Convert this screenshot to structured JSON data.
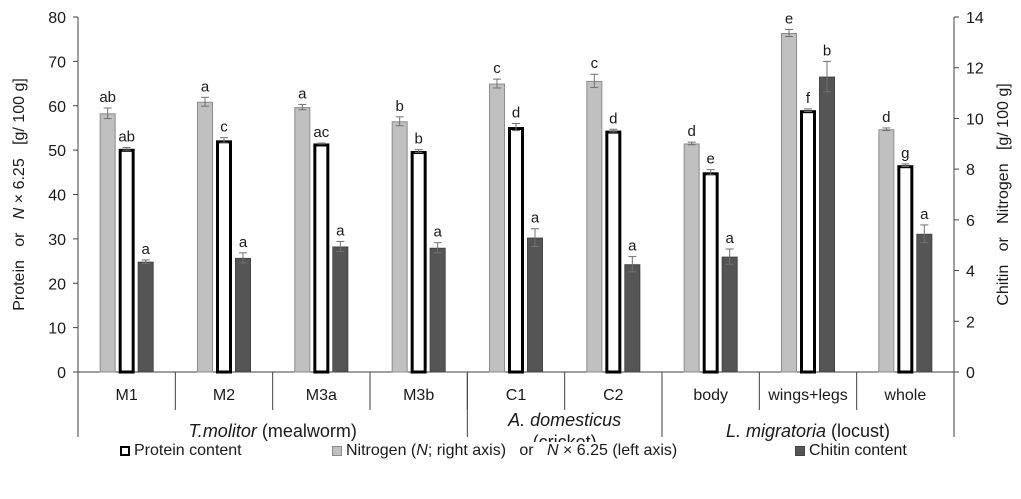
{
  "chart_data": {
    "type": "bar",
    "left_axis": {
      "label_parts": [
        {
          "text": "Protein   or   ",
          "italic": false
        },
        {
          "text": "N",
          "italic": true
        },
        {
          "text": " × 6.25   [g/ 100 g]",
          "italic": false
        }
      ],
      "ylim": [
        0,
        80
      ],
      "ticks": [
        0,
        10,
        20,
        30,
        40,
        50,
        60,
        70,
        80
      ]
    },
    "right_axis": {
      "label": "Chitin   or   Nitrogen   [g/ 100 g]",
      "ylim": [
        0,
        14
      ],
      "ticks": [
        0,
        2,
        4,
        6,
        8,
        10,
        12,
        14
      ]
    },
    "categories": [
      "M1",
      "M2",
      "M3a",
      "M3b",
      "C1",
      "C2",
      "body",
      "wings+legs",
      "whole"
    ],
    "groups": [
      {
        "label_parts": [
          {
            "text": "T.molitor",
            "italic": true
          },
          {
            "text": " (mealworm)",
            "italic": false
          }
        ],
        "span": [
          0,
          3
        ],
        "lines": 1
      },
      {
        "label_parts": [
          {
            "text": "A. domesticus",
            "italic": true
          }
        ],
        "label_line2": "(cricket)",
        "span": [
          4,
          5
        ],
        "lines": 2
      },
      {
        "label_parts": [
          {
            "text": "L. migratoria",
            "italic": true
          },
          {
            "text": " (locust)",
            "italic": false
          }
        ],
        "span": [
          6,
          8
        ],
        "lines": 1
      }
    ],
    "series": [
      {
        "key": "nitrogen",
        "name": "Nitrogen (N; right axis)  or  N × 6.25 (left axis)",
        "axis": "left",
        "color": "#c0c0c0",
        "values": [
          58.3,
          60.9,
          59.7,
          56.5,
          65.0,
          65.6,
          51.5,
          76.4,
          54.7
        ],
        "errors": [
          1.2,
          1.0,
          0.6,
          1.0,
          1.0,
          1.5,
          0.3,
          0.8,
          0.3
        ],
        "letters": [
          "ab",
          "a",
          "a",
          "b",
          "c",
          "c",
          "d",
          "e",
          "d"
        ]
      },
      {
        "key": "protein",
        "name": "Protein content",
        "axis": "left",
        "color": "#ffffff",
        "values": [
          50.3,
          52.2,
          51.5,
          49.8,
          55.2,
          54.4,
          45.0,
          59.0,
          46.6
        ],
        "errors": [
          0.3,
          0.6,
          0.1,
          0.3,
          0.8,
          0.3,
          0.6,
          0.3,
          0.3
        ],
        "letters": [
          "ab",
          "c",
          "ac",
          "b",
          "d",
          "d",
          "e",
          "f",
          "g"
        ]
      },
      {
        "key": "chitin",
        "name": "Chitin content",
        "axis": "right",
        "color": "#555555",
        "values": [
          4.35,
          4.5,
          4.95,
          4.9,
          5.3,
          4.25,
          4.55,
          11.65,
          5.45
        ],
        "errors": [
          0.07,
          0.2,
          0.2,
          0.2,
          0.35,
          0.3,
          0.3,
          0.6,
          0.35
        ],
        "letters": [
          "a",
          "a",
          "a",
          "a",
          "a",
          "a",
          "a",
          "b",
          "a"
        ]
      }
    ],
    "grid": false
  },
  "legend": {
    "protein": "Protein content",
    "nitrogen_a": "Nitrogen (",
    "nitrogen_n": "N",
    "nitrogen_b": "; right axis)   or   ",
    "nitrogen_c": "N",
    "nitrogen_d": " × 6.25 (left axis)",
    "chitin": "Chitin content"
  },
  "colors": {
    "axis": "#404040",
    "nitrogen_edge": "#8c8c8c",
    "error": "#707070"
  }
}
